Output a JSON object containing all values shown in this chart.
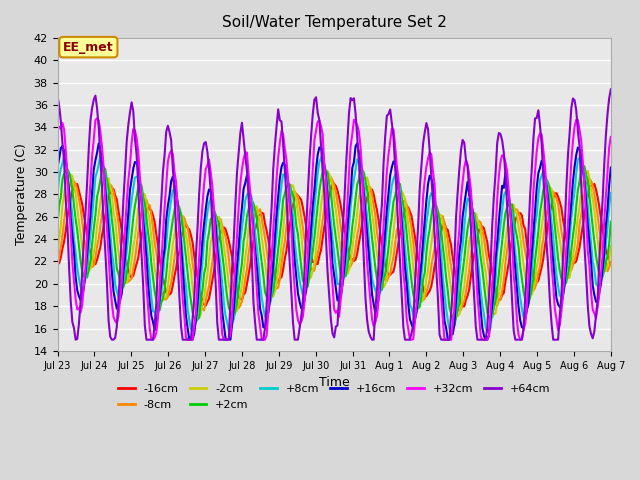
{
  "title": "Soil/Water Temperature Set 2",
  "xlabel": "Time",
  "ylabel": "Temperature (C)",
  "ylim": [
    14,
    42
  ],
  "yticks": [
    14,
    16,
    18,
    20,
    22,
    24,
    26,
    28,
    30,
    32,
    34,
    36,
    38,
    40,
    42
  ],
  "annotation_text": "EE_met",
  "annotation_bg": "#ffff99",
  "annotation_border": "#cc8800",
  "background_color": "#e8e8e8",
  "plot_bg": "#f0f0f0",
  "series": [
    {
      "label": "-16cm",
      "color": "#ff0000",
      "lw": 1.5
    },
    {
      "label": "-8cm",
      "color": "#ff8800",
      "lw": 1.5
    },
    {
      "label": "-2cm",
      "color": "#cccc00",
      "lw": 1.5
    },
    {
      "label": "+2cm",
      "color": "#00cc00",
      "lw": 1.5
    },
    {
      "label": "+8cm",
      "color": "#00cccc",
      "lw": 1.5
    },
    {
      "label": "+16cm",
      "color": "#0000cc",
      "lw": 1.5
    },
    {
      "label": "+32cm",
      "color": "#ff00ff",
      "lw": 1.5
    },
    {
      "label": "+64cm",
      "color": "#8800cc",
      "lw": 1.5
    }
  ],
  "xtick_labels": [
    "Jul 23",
    "Jul 24",
    "Jul 25",
    "Jul 26",
    "Jul 27",
    "Jul 28",
    "Jul 29",
    "Jul 30",
    "Jul 31",
    "Aug 1",
    "Aug 2",
    "Aug 3",
    "Aug 4",
    "Aug 5",
    "Aug 6",
    "Aug 7"
  ],
  "n_points": 337
}
